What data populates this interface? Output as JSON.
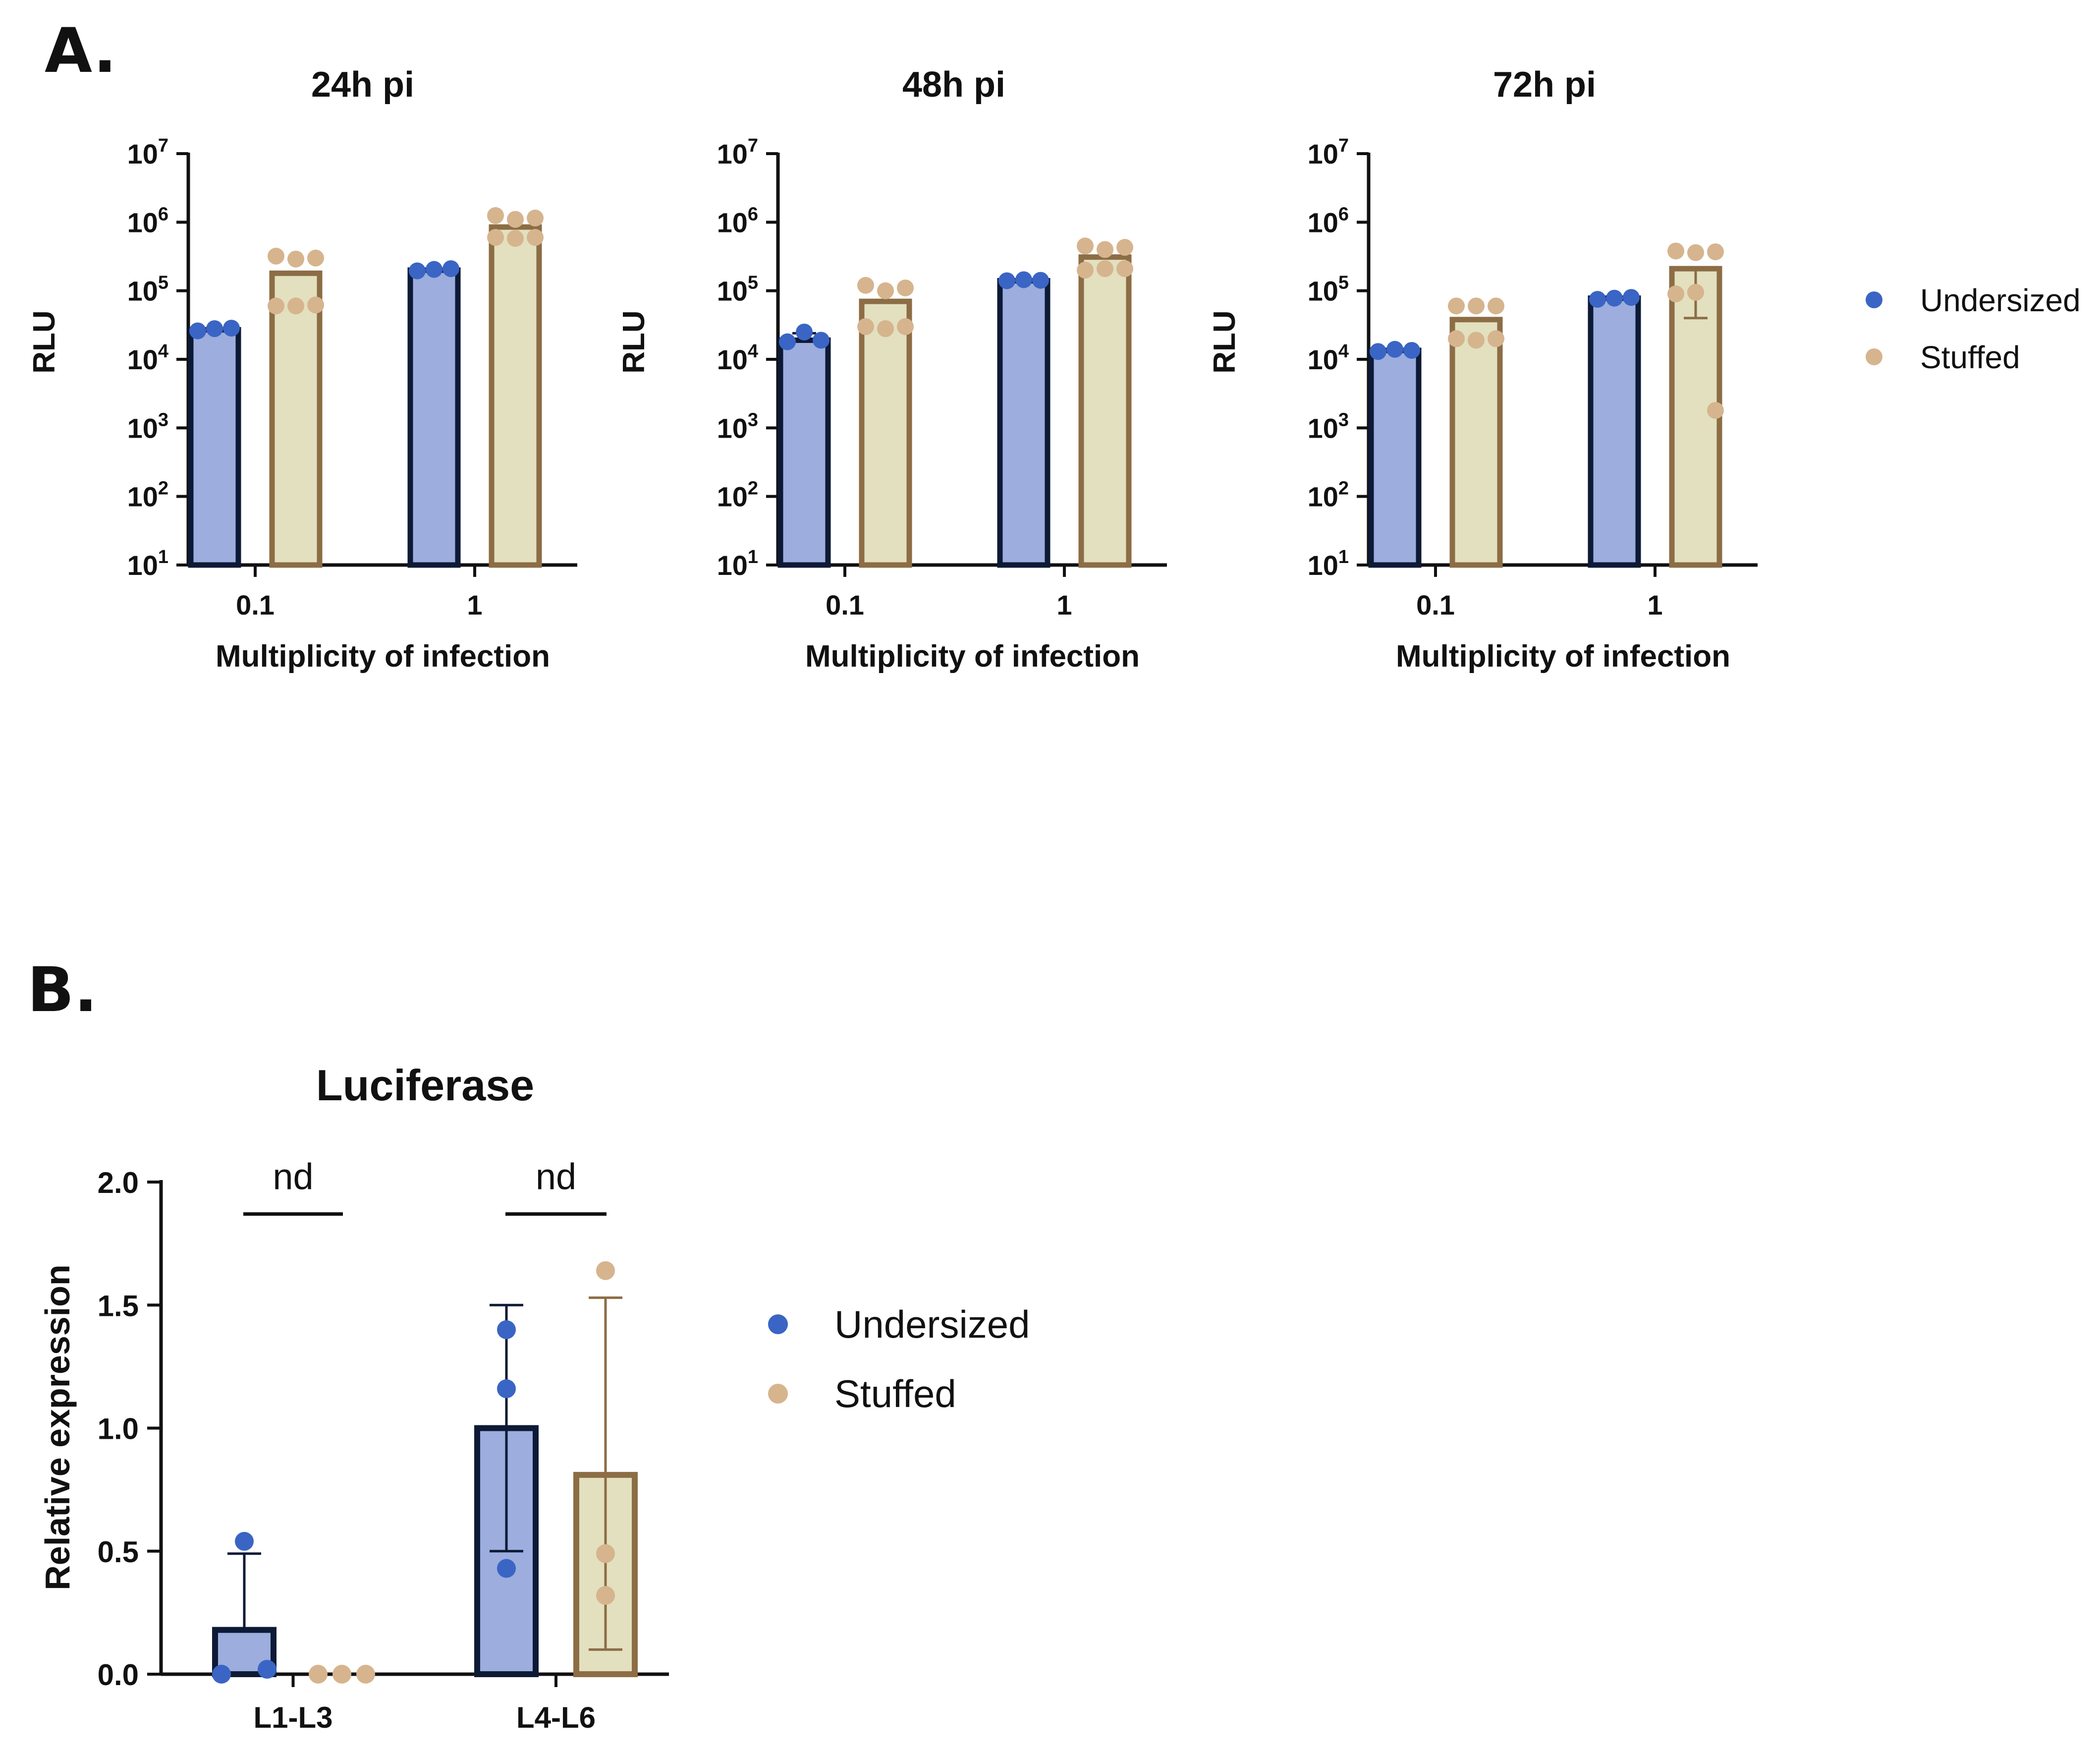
{
  "figure": {
    "panel_a_label": "A.",
    "panel_b_label": "B."
  },
  "colors": {
    "undersized_fill": "#9cadde",
    "undersized_edge": "#0d1a36",
    "undersized_point": "#3a65c4",
    "stuffed_fill": "#e2e0bf",
    "stuffed_edge": "#8c6d45",
    "stuffed_point": "#d6b48e",
    "axis": "#111111"
  },
  "chart_data": [
    {
      "id": "a1",
      "type": "bar",
      "title": "24h pi",
      "xlabel": "Multiplicity of infection",
      "ylabel": "RLU",
      "yscale": "log",
      "ylim": [
        10,
        10000000
      ],
      "ytick_bases": [
        "10",
        "10",
        "10",
        "10",
        "10",
        "10",
        "10"
      ],
      "ytick_exponents": [
        "1",
        "2",
        "3",
        "4",
        "5",
        "6",
        "7"
      ],
      "categories": [
        "0.1",
        "1"
      ],
      "legend": {
        "position": "right",
        "entries": [
          "Undersized",
          "Stuffed"
        ]
      },
      "series": [
        {
          "name": "Undersized",
          "values": [
            27000,
            200000
          ],
          "error_high": [
            null,
            null
          ],
          "points": [
            [
              26000,
              28000,
              28500
            ],
            [
              195000,
              205000,
              210000
            ]
          ]
        },
        {
          "name": "Stuffed",
          "values": [
            180000,
            850000
          ],
          "error_high": [
            null,
            null
          ],
          "points": [
            [
              320000,
              290000,
              300000,
              60000,
              60000,
              62000
            ],
            [
              1250000,
              1100000,
              1150000,
              600000,
              580000,
              600000
            ]
          ]
        }
      ]
    },
    {
      "id": "a2",
      "type": "bar",
      "title": "48h pi",
      "xlabel": "Multiplicity of infection",
      "ylabel": "RLU",
      "yscale": "log",
      "ylim": [
        10,
        10000000
      ],
      "ytick_bases": [
        "10",
        "10",
        "10",
        "10",
        "10",
        "10",
        "10"
      ],
      "ytick_exponents": [
        "1",
        "2",
        "3",
        "4",
        "5",
        "6",
        "7"
      ],
      "categories": [
        "0.1",
        "1"
      ],
      "series": [
        {
          "name": "Undersized",
          "values": [
            19000,
            140000
          ],
          "error_high": [
            24000,
            null
          ],
          "points": [
            [
              18000,
              25000,
              19000
            ],
            [
              140000,
              145000,
              142000
            ]
          ]
        },
        {
          "name": "Stuffed",
          "values": [
            70000,
            310000
          ],
          "error_high": [
            null,
            null
          ],
          "points": [
            [
              120000,
              100000,
              110000,
              30000,
              28000,
              30000
            ],
            [
              450000,
              400000,
              430000,
              200000,
              210000,
              210000
            ]
          ]
        }
      ]
    },
    {
      "id": "a3",
      "type": "bar",
      "title": "72h pi",
      "xlabel": "Multiplicity of infection",
      "ylabel": "RLU",
      "yscale": "log",
      "ylim": [
        10,
        10000000
      ],
      "ytick_bases": [
        "10",
        "10",
        "10",
        "10",
        "10",
        "10",
        "10"
      ],
      "ytick_exponents": [
        "1",
        "2",
        "3",
        "4",
        "5",
        "6",
        "7"
      ],
      "categories": [
        "0.1",
        "1"
      ],
      "legend": {
        "position": "right",
        "entries": [
          "Undersized",
          "Stuffed"
        ]
      },
      "series": [
        {
          "name": "Undersized",
          "values": [
            13500,
            78000
          ],
          "error_high": [
            null,
            null
          ],
          "points": [
            [
              13000,
              14000,
              13500
            ],
            [
              75000,
              78000,
              80000
            ]
          ]
        },
        {
          "name": "Stuffed",
          "values": [
            38000,
            210000
          ],
          "error_high": [
            null,
            null
          ],
          "error_low": [
            null,
            40000
          ],
          "points": [
            [
              60000,
              60000,
              60000,
              20000,
              19000,
              20000
            ],
            [
              380000,
              360000,
              370000,
              90000,
              95000,
              1800
            ]
          ]
        }
      ]
    },
    {
      "id": "b",
      "type": "bar",
      "title": "Luciferase",
      "xlabel": "",
      "ylabel": "Relative expression",
      "yscale": "linear",
      "ylim": [
        0,
        2
      ],
      "yticks": [
        "0.0",
        "0.5",
        "1.0",
        "1.5",
        "2.0"
      ],
      "categories": [
        "L1-L3",
        "L4-L6"
      ],
      "legend": {
        "position": "right",
        "entries": [
          "Undersized",
          "Stuffed"
        ]
      },
      "annotations": [
        {
          "category": "L1-L3",
          "text": "nd",
          "y": 1.87
        },
        {
          "category": "L4-L6",
          "text": "nd",
          "y": 1.87
        }
      ],
      "series": [
        {
          "name": "Undersized",
          "values": [
            0.18,
            1.0
          ],
          "error_high": [
            0.49,
            1.5
          ],
          "error_low": [
            null,
            0.5
          ],
          "points": [
            [
              0.0,
              0.54,
              0.02
            ],
            [
              1.4,
              1.16,
              0.43
            ]
          ]
        },
        {
          "name": "Stuffed",
          "values": [
            0.0,
            0.81
          ],
          "error_high": [
            null,
            1.53
          ],
          "error_low": [
            null,
            0.1
          ],
          "points": [
            [
              0.0,
              0.0,
              0.0
            ],
            [
              1.64,
              0.49,
              0.32
            ]
          ]
        }
      ]
    }
  ]
}
